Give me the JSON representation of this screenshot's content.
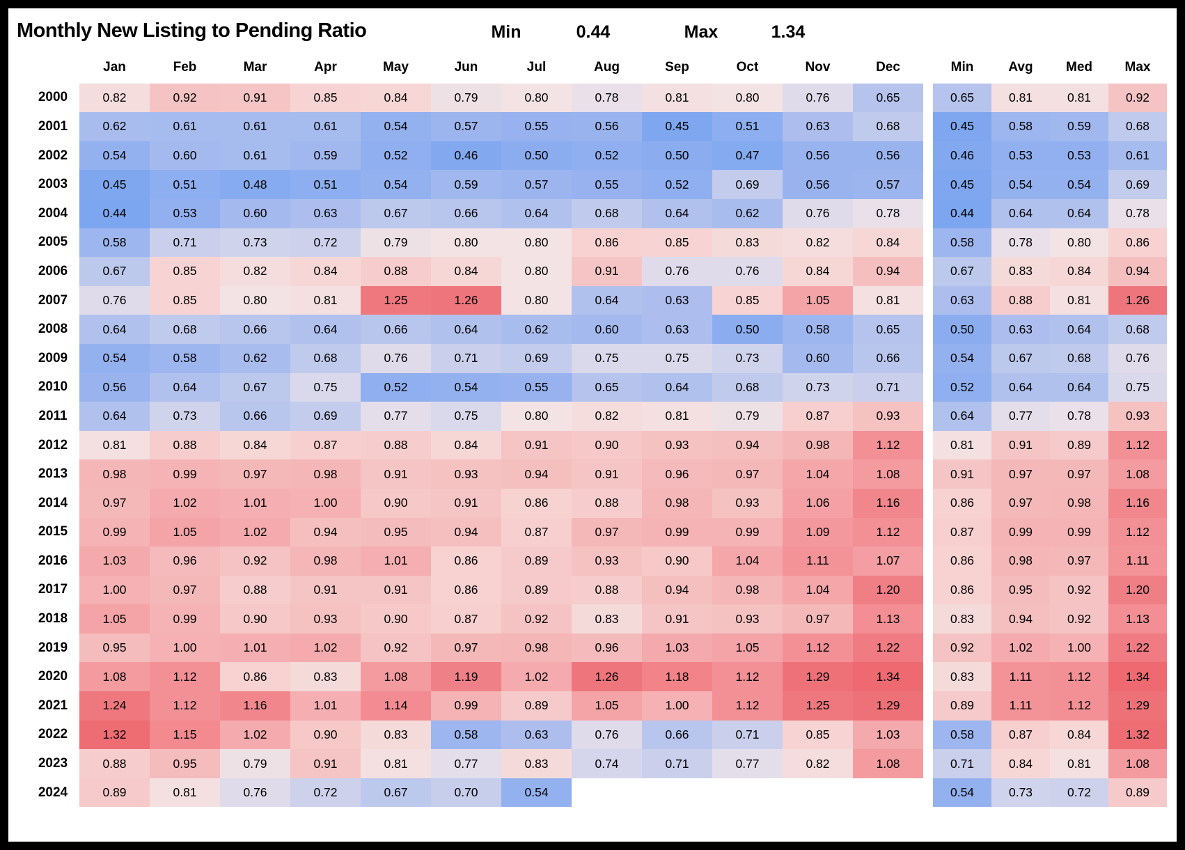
{
  "title": "Monthly New Listing to Pending Ratio",
  "header_stats": {
    "min_label": "Min",
    "min_value": "0.44",
    "max_label": "Max",
    "max_value": "1.34"
  },
  "chart_data": {
    "type": "heatmap",
    "title": "Monthly New Listing to Pending Ratio",
    "overall_min": 0.44,
    "overall_max": 1.34,
    "month_columns": [
      "Jan",
      "Feb",
      "Mar",
      "Apr",
      "May",
      "Jun",
      "Jul",
      "Aug",
      "Sep",
      "Oct",
      "Nov",
      "Dec"
    ],
    "summary_columns": [
      "Min",
      "Avg",
      "Med",
      "Max"
    ],
    "years": [
      2000,
      2001,
      2002,
      2003,
      2004,
      2005,
      2006,
      2007,
      2008,
      2009,
      2010,
      2011,
      2012,
      2013,
      2014,
      2015,
      2016,
      2017,
      2018,
      2019,
      2020,
      2021,
      2022,
      2023,
      2024
    ],
    "values": [
      [
        0.82,
        0.92,
        0.91,
        0.85,
        0.84,
        0.79,
        0.8,
        0.78,
        0.81,
        0.8,
        0.76,
        0.65
      ],
      [
        0.62,
        0.61,
        0.61,
        0.61,
        0.54,
        0.57,
        0.55,
        0.56,
        0.45,
        0.51,
        0.63,
        0.68
      ],
      [
        0.54,
        0.6,
        0.61,
        0.59,
        0.52,
        0.46,
        0.5,
        0.52,
        0.5,
        0.47,
        0.56,
        0.56
      ],
      [
        0.45,
        0.51,
        0.48,
        0.51,
        0.54,
        0.59,
        0.57,
        0.55,
        0.52,
        0.69,
        0.56,
        0.57
      ],
      [
        0.44,
        0.53,
        0.6,
        0.63,
        0.67,
        0.66,
        0.64,
        0.68,
        0.64,
        0.62,
        0.76,
        0.78
      ],
      [
        0.58,
        0.71,
        0.73,
        0.72,
        0.79,
        0.8,
        0.8,
        0.86,
        0.85,
        0.83,
        0.82,
        0.84
      ],
      [
        0.67,
        0.85,
        0.82,
        0.84,
        0.88,
        0.84,
        0.8,
        0.91,
        0.76,
        0.76,
        0.84,
        0.94
      ],
      [
        0.76,
        0.85,
        0.8,
        0.81,
        1.25,
        1.26,
        0.8,
        0.64,
        0.63,
        0.85,
        1.05,
        0.81
      ],
      [
        0.64,
        0.68,
        0.66,
        0.64,
        0.66,
        0.64,
        0.62,
        0.6,
        0.63,
        0.5,
        0.58,
        0.65
      ],
      [
        0.54,
        0.58,
        0.62,
        0.68,
        0.76,
        0.71,
        0.69,
        0.75,
        0.75,
        0.73,
        0.6,
        0.66
      ],
      [
        0.56,
        0.64,
        0.67,
        0.75,
        0.52,
        0.54,
        0.55,
        0.65,
        0.64,
        0.68,
        0.73,
        0.71
      ],
      [
        0.64,
        0.73,
        0.66,
        0.69,
        0.77,
        0.75,
        0.8,
        0.82,
        0.81,
        0.79,
        0.87,
        0.93
      ],
      [
        0.81,
        0.88,
        0.84,
        0.87,
        0.88,
        0.84,
        0.91,
        0.9,
        0.93,
        0.94,
        0.98,
        1.12
      ],
      [
        0.98,
        0.99,
        0.97,
        0.98,
        0.91,
        0.93,
        0.94,
        0.91,
        0.96,
        0.97,
        1.04,
        1.08
      ],
      [
        0.97,
        1.02,
        1.01,
        1.0,
        0.9,
        0.91,
        0.86,
        0.88,
        0.98,
        0.93,
        1.06,
        1.16
      ],
      [
        0.99,
        1.05,
        1.02,
        0.94,
        0.95,
        0.94,
        0.87,
        0.97,
        0.99,
        0.99,
        1.09,
        1.12
      ],
      [
        1.03,
        0.96,
        0.92,
        0.98,
        1.01,
        0.86,
        0.89,
        0.93,
        0.9,
        1.04,
        1.11,
        1.07
      ],
      [
        1.0,
        0.97,
        0.88,
        0.91,
        0.91,
        0.86,
        0.89,
        0.88,
        0.94,
        0.98,
        1.04,
        1.2
      ],
      [
        1.05,
        0.99,
        0.9,
        0.93,
        0.9,
        0.87,
        0.92,
        0.83,
        0.91,
        0.93,
        0.97,
        1.13
      ],
      [
        0.95,
        1.0,
        1.01,
        1.02,
        0.92,
        0.97,
        0.98,
        0.96,
        1.03,
        1.05,
        1.12,
        1.22
      ],
      [
        1.08,
        1.12,
        0.86,
        0.83,
        1.08,
        1.19,
        1.02,
        1.26,
        1.18,
        1.12,
        1.29,
        1.34
      ],
      [
        1.24,
        1.12,
        1.16,
        1.01,
        1.14,
        0.99,
        0.89,
        1.05,
        1.0,
        1.12,
        1.25,
        1.29
      ],
      [
        1.32,
        1.15,
        1.02,
        0.9,
        0.83,
        0.58,
        0.63,
        0.76,
        0.66,
        0.71,
        0.85,
        1.03
      ],
      [
        0.88,
        0.95,
        0.79,
        0.91,
        0.81,
        0.77,
        0.83,
        0.74,
        0.71,
        0.77,
        0.82,
        1.08
      ],
      [
        0.89,
        0.81,
        0.76,
        0.72,
        0.67,
        0.7,
        0.54,
        null,
        null,
        null,
        null,
        null
      ]
    ],
    "summary": [
      [
        0.65,
        0.81,
        0.81,
        0.92
      ],
      [
        0.45,
        0.58,
        0.59,
        0.68
      ],
      [
        0.46,
        0.53,
        0.53,
        0.61
      ],
      [
        0.45,
        0.54,
        0.54,
        0.69
      ],
      [
        0.44,
        0.64,
        0.64,
        0.78
      ],
      [
        0.58,
        0.78,
        0.8,
        0.86
      ],
      [
        0.67,
        0.83,
        0.84,
        0.94
      ],
      [
        0.63,
        0.88,
        0.81,
        1.26
      ],
      [
        0.5,
        0.63,
        0.64,
        0.68
      ],
      [
        0.54,
        0.67,
        0.68,
        0.76
      ],
      [
        0.52,
        0.64,
        0.64,
        0.75
      ],
      [
        0.64,
        0.77,
        0.78,
        0.93
      ],
      [
        0.81,
        0.91,
        0.89,
        1.12
      ],
      [
        0.91,
        0.97,
        0.97,
        1.08
      ],
      [
        0.86,
        0.97,
        0.98,
        1.16
      ],
      [
        0.87,
        0.99,
        0.99,
        1.12
      ],
      [
        0.86,
        0.98,
        0.97,
        1.11
      ],
      [
        0.86,
        0.95,
        0.92,
        1.2
      ],
      [
        0.83,
        0.94,
        0.92,
        1.13
      ],
      [
        0.92,
        1.02,
        1.0,
        1.22
      ],
      [
        0.83,
        1.11,
        1.12,
        1.34
      ],
      [
        0.89,
        1.11,
        1.12,
        1.29
      ],
      [
        0.58,
        0.87,
        0.84,
        1.32
      ],
      [
        0.71,
        0.84,
        0.81,
        1.08
      ],
      [
        0.54,
        0.73,
        0.72,
        0.89
      ]
    ],
    "legend_position": "none",
    "grid": false,
    "colormap": {
      "low_color": "#7da6f0",
      "mid_color": "#f3e3e4",
      "high_color": "#ee6a70",
      "stops": [
        {
          "v": 0.44,
          "c": "#7da6f0"
        },
        {
          "v": 0.5,
          "c": "#8badf0"
        },
        {
          "v": 0.56,
          "c": "#99b3ef"
        },
        {
          "v": 0.62,
          "c": "#a9bcee"
        },
        {
          "v": 0.68,
          "c": "#c0caec"
        },
        {
          "v": 0.73,
          "c": "#d0d3ec"
        },
        {
          "v": 0.77,
          "c": "#e4deeb"
        },
        {
          "v": 0.8,
          "c": "#f3e3e4"
        },
        {
          "v": 0.85,
          "c": "#f7d4d3"
        },
        {
          "v": 0.92,
          "c": "#f5c3c3"
        },
        {
          "v": 1.0,
          "c": "#f5b1b3"
        },
        {
          "v": 1.1,
          "c": "#f3959a"
        },
        {
          "v": 1.2,
          "c": "#f07e85"
        },
        {
          "v": 1.34,
          "c": "#ee6a70"
        }
      ]
    }
  }
}
